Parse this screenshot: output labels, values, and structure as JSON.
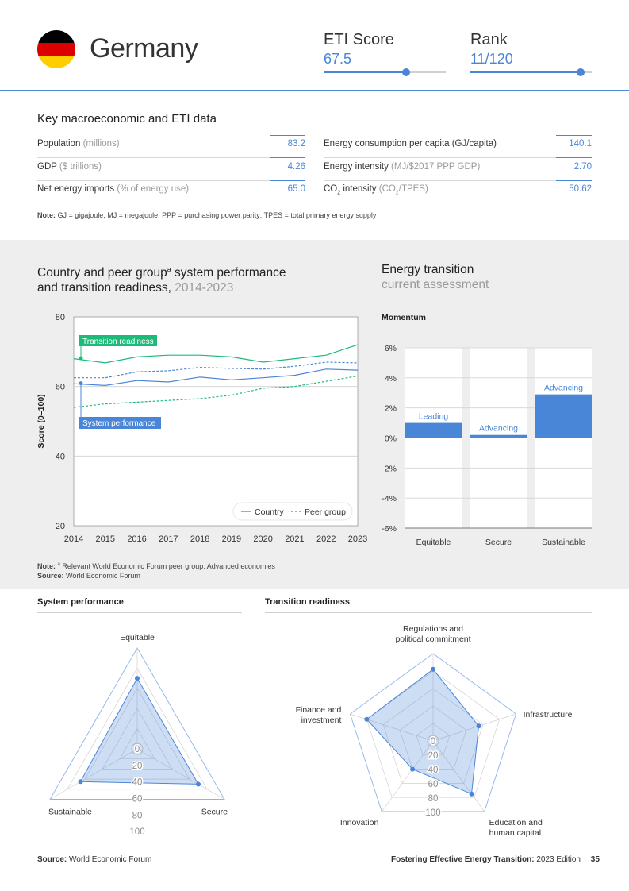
{
  "header": {
    "country": "Germany",
    "flag_colors": [
      "#000000",
      "#dd0000",
      "#ffce00"
    ],
    "eti_score": {
      "label": "ETI Score",
      "value": "67.5",
      "fraction": 0.675
    },
    "rank": {
      "label": "Rank",
      "value": "11/120",
      "fraction": 0.908
    }
  },
  "key_data": {
    "title": "Key macroeconomic and ETI data",
    "left": [
      {
        "label": "Population",
        "unit": "(millions)",
        "value": "83.2"
      },
      {
        "label": "GDP",
        "unit": "($ trillions)",
        "value": "4.26"
      },
      {
        "label": "Net energy imports",
        "unit": "(% of energy use)",
        "value": "65.0"
      }
    ],
    "right": [
      {
        "label": "Energy consumption per capita (GJ/capita)",
        "unit": "",
        "value": "140.1"
      },
      {
        "label": "Energy intensity",
        "unit": "(MJ/$2017 PPP GDP)",
        "value": "2.70"
      },
      {
        "label": "CO",
        "label_sub": "2",
        "label_after": " intensity",
        "unit": "(CO",
        "unit_sub": "2",
        "unit_after": "/TPES)",
        "value": "50.62"
      }
    ],
    "note_label": "Note:",
    "note_text": "GJ = gigajoule; MJ = megajoule; PPP = purchasing power parity; TPES = total primary energy supply"
  },
  "line_chart": {
    "title_line1": "Country and peer group",
    "title_sup": "a",
    "title_line1_after": " system performance",
    "title_line2": "and transition readiness,",
    "title_years": "2014-2023",
    "ylabel": "Score (0–100)",
    "note_label": "Note:",
    "note_sup": "a",
    "note_text": "Relevant World Economic Forum peer group: Advanced economies",
    "source_label": "Source:",
    "source_text": "World Economic Forum",
    "legend_country": "Country",
    "legend_peer": "Peer group",
    "label_tr": "Transition readiness",
    "label_sp": "System performance"
  },
  "chart_data": [
    {
      "type": "line",
      "title": "Country and peer group system performance and transition readiness, 2014-2023",
      "ylabel": "Score (0–100)",
      "ylim": [
        20,
        80
      ],
      "yticks": [
        20,
        40,
        60,
        80
      ],
      "x": [
        2014,
        2015,
        2016,
        2017,
        2018,
        2019,
        2020,
        2021,
        2022,
        2023
      ],
      "colors": {
        "transition": "#1dbb7a",
        "system": "#4a86d8"
      },
      "series": [
        {
          "name": "Transition readiness - Country",
          "dash": false,
          "color": "transition",
          "values": [
            68.0,
            66.8,
            68.5,
            69.0,
            69.0,
            68.5,
            67.0,
            68.0,
            69.0,
            72.0
          ]
        },
        {
          "name": "Transition readiness - Peer group",
          "dash": true,
          "color": "transition",
          "values": [
            54.0,
            55.0,
            55.5,
            56.0,
            56.5,
            57.5,
            59.5,
            60.0,
            61.5,
            63.0
          ]
        },
        {
          "name": "System performance - Country",
          "dash": false,
          "color": "system",
          "values": [
            60.8,
            60.3,
            61.7,
            61.3,
            62.7,
            61.9,
            62.5,
            63.2,
            65.0,
            64.7
          ]
        },
        {
          "name": "System performance - Peer group",
          "dash": true,
          "color": "system",
          "values": [
            62.5,
            62.5,
            64.2,
            64.5,
            65.5,
            65.2,
            65.0,
            65.8,
            67.0,
            66.8
          ]
        }
      ]
    },
    {
      "type": "bar",
      "title": "Momentum",
      "categories": [
        "Equitable",
        "Secure",
        "Sustainable"
      ],
      "values": [
        1.0,
        0.2,
        2.9
      ],
      "annotations": [
        "Leading",
        "Advancing",
        "Advancing"
      ],
      "ylim": [
        -6,
        6
      ],
      "yticks": [
        "6%",
        "4%",
        "2%",
        "0%",
        "-2%",
        "-4%",
        "-6%"
      ],
      "color": "#4a86d8"
    },
    {
      "type": "radar",
      "title": "System performance",
      "axes": [
        "Equitable",
        "Secure",
        "Sustainable"
      ],
      "values": [
        70,
        70,
        65
      ],
      "rlim": [
        0,
        100
      ],
      "rticks": [
        "0",
        "20",
        "40",
        "60",
        "80",
        "100"
      ]
    },
    {
      "type": "radar",
      "title": "Transition readiness",
      "axes": [
        "Regulations and\npolitical commitment",
        "Infrastructure",
        "Education and\nhuman capital",
        "Innovation",
        "Finance and\ninvestment"
      ],
      "axis_lines": [
        [
          "Regulations and",
          "political commitment"
        ],
        [
          "Infrastructure"
        ],
        [
          "Education and",
          "human capital"
        ],
        [
          "Innovation"
        ],
        [
          "Finance and",
          "investment"
        ]
      ],
      "values": [
        82,
        55,
        75,
        40,
        80
      ],
      "rlim": [
        0,
        100
      ],
      "rticks": [
        "0",
        "20",
        "40",
        "60",
        "80",
        "100"
      ]
    }
  ],
  "energy_transition": {
    "title": "Energy transition",
    "subtitle": "current assessment",
    "momentum_label": "Momentum"
  },
  "lower": {
    "system_title": "System performance",
    "transition_title": "Transition readiness"
  },
  "footer": {
    "source_label": "Source:",
    "source_text": "World Economic Forum",
    "report_bold": "Fostering Effective Energy Transition:",
    "report_rest": "2023 Edition",
    "page": "35"
  }
}
